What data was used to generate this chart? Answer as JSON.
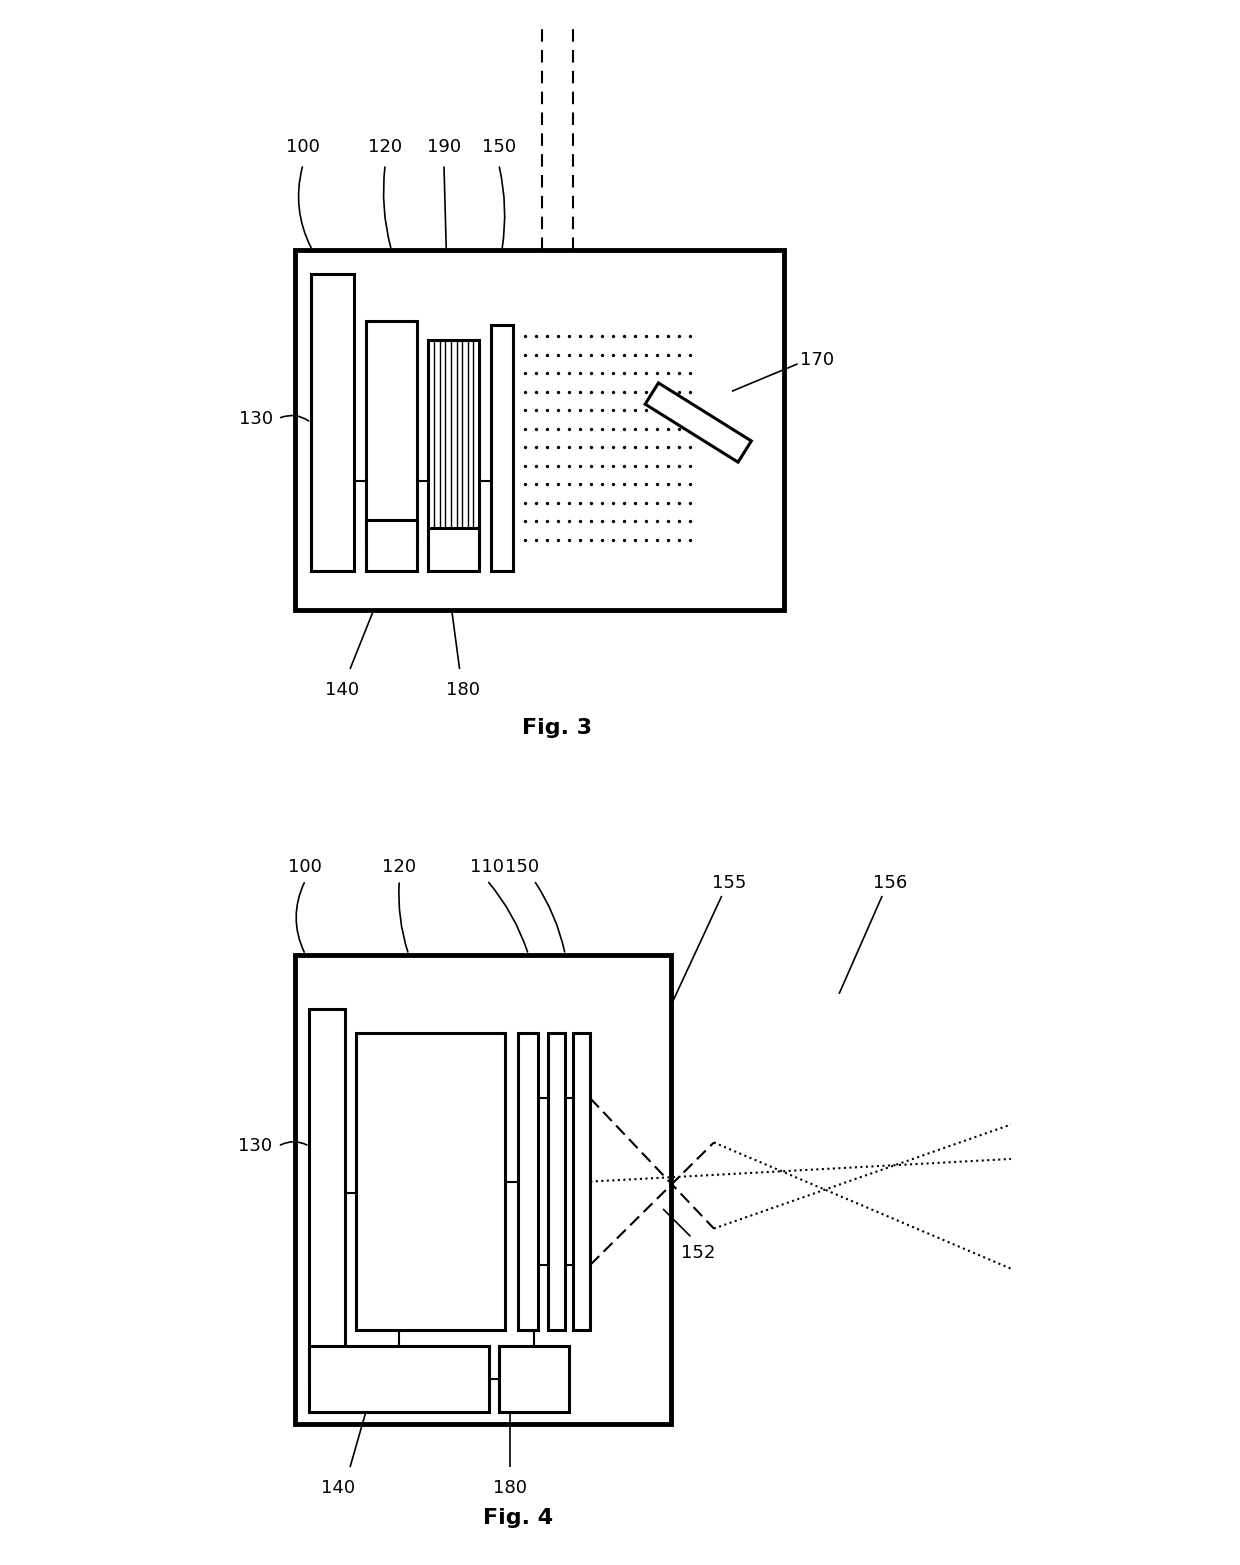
{
  "background_color": "#ffffff",
  "line_color": "#000000",
  "fig3_title": "Fig. 3",
  "fig4_title": "Fig. 4",
  "lw_outer": 3.5,
  "lw_component": 2.2,
  "lw_line": 1.5,
  "lw_label": 1.2,
  "fontsize_label": 13,
  "fontsize_title": 16
}
